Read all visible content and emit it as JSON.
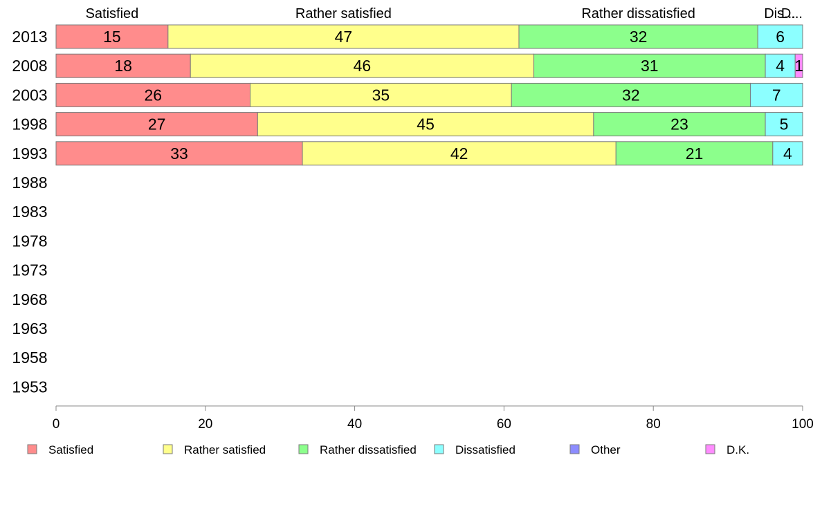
{
  "chart_data": {
    "type": "bar",
    "orientation": "horizontal",
    "stacked": true,
    "categories": [
      "2013",
      "2008",
      "2003",
      "1998",
      "1993",
      "1988",
      "1983",
      "1978",
      "1973",
      "1968",
      "1963",
      "1958",
      "1953"
    ],
    "series": [
      {
        "name": "Satisfied",
        "color": "#ff8c8c",
        "values": [
          15,
          18,
          26,
          27,
          33,
          null,
          null,
          null,
          null,
          null,
          null,
          null,
          null
        ]
      },
      {
        "name": "Rather satisfied",
        "color": "#ffff8c",
        "values": [
          47,
          46,
          35,
          45,
          42,
          null,
          null,
          null,
          null,
          null,
          null,
          null,
          null
        ]
      },
      {
        "name": "Rather dissatisfied",
        "color": "#8cff8c",
        "values": [
          32,
          31,
          32,
          23,
          21,
          null,
          null,
          null,
          null,
          null,
          null,
          null,
          null
        ]
      },
      {
        "name": "Dissatisfied",
        "color": "#8cffff",
        "values": [
          6,
          4,
          7,
          5,
          4,
          null,
          null,
          null,
          null,
          null,
          null,
          null,
          null
        ]
      },
      {
        "name": "Other",
        "color": "#8c8cff",
        "values": [
          0,
          0,
          0,
          0,
          0,
          null,
          null,
          null,
          null,
          null,
          null,
          null,
          null
        ]
      },
      {
        "name": "D.K.",
        "color": "#ff8cff",
        "values": [
          0,
          1,
          0,
          0,
          0,
          null,
          null,
          null,
          null,
          null,
          null,
          null,
          null
        ]
      }
    ],
    "top_labels": [
      "Satisfied",
      "Rather satisfied",
      "Rather dissatisfied",
      "Dis...",
      "D..."
    ],
    "xlim": [
      0,
      100
    ],
    "xticks": [
      0,
      20,
      40,
      60,
      80,
      100
    ],
    "grid": false,
    "legend_position": "bottom"
  }
}
